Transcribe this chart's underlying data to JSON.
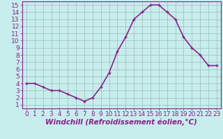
{
  "x": [
    0,
    1,
    2,
    3,
    4,
    5,
    6,
    7,
    8,
    9,
    10,
    11,
    12,
    13,
    14,
    15,
    16,
    17,
    18,
    19,
    20,
    21,
    22,
    23
  ],
  "y": [
    4.0,
    4.0,
    3.5,
    3.0,
    3.0,
    2.5,
    2.0,
    1.5,
    2.0,
    3.5,
    5.5,
    8.5,
    10.5,
    13.0,
    14.0,
    15.0,
    15.0,
    14.0,
    13.0,
    10.5,
    9.0,
    8.0,
    6.5,
    6.5
  ],
  "line_color": "#882288",
  "marker": "P",
  "marker_size": 2.5,
  "xlabel": "Windchill (Refroidissement éolien,°C)",
  "xlabel_fontsize": 7.5,
  "ylabel_ticks": [
    1,
    2,
    3,
    4,
    5,
    6,
    7,
    8,
    9,
    10,
    11,
    12,
    13,
    14,
    15
  ],
  "xlim": [
    -0.5,
    23.5
  ],
  "ylim": [
    0.5,
    15.5
  ],
  "grid_color": "#99bbbb",
  "bg_color": "#c8eded",
  "tick_fontsize": 6.5,
  "line_width": 1.2
}
